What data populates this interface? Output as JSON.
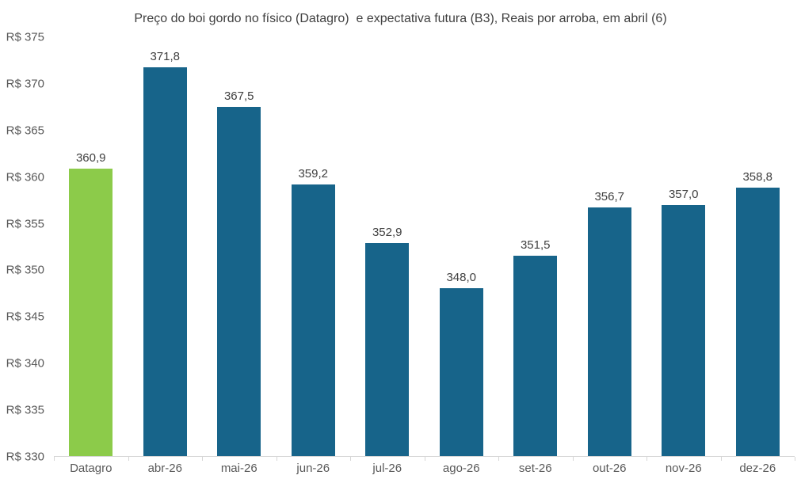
{
  "chart_data": {
    "type": "bar",
    "title": "Preço do boi gordo no físico (Datagro)  e expectativa futura (B3), Reais por arroba, em abril (6)",
    "categories": [
      "Datagro",
      "abr-26",
      "mai-26",
      "jun-26",
      "jul-26",
      "ago-26",
      "set-26",
      "out-26",
      "nov-26",
      "dez-26"
    ],
    "values": [
      360.9,
      371.8,
      367.5,
      359.2,
      352.9,
      348.0,
      351.5,
      356.7,
      357.0,
      358.8
    ],
    "value_labels": [
      "360,9",
      "371,8",
      "367,5",
      "359,2",
      "352,9",
      "348,0",
      "351,5",
      "356,7",
      "357,0",
      "358,8"
    ],
    "xlabel": "",
    "ylabel": "",
    "ylim": [
      330,
      375
    ],
    "ytick_step": 5,
    "ytick_values": [
      375,
      370,
      365,
      360,
      355,
      350,
      345,
      340,
      335,
      330
    ],
    "ytick_labels": [
      "R$ 375",
      "R$ 370",
      "R$ 365",
      "R$ 360",
      "R$ 355",
      "R$ 350",
      "R$ 345",
      "R$ 340",
      "R$ 335",
      "R$ 330"
    ],
    "grid": false,
    "legend": "none",
    "colors": {
      "highlight_bar": "#8ccb4a",
      "series_bar": "#17648a",
      "axis_line": "#d6d6d6",
      "title_text": "#404040",
      "axis_text": "#595959",
      "value_label_text": "#404040"
    },
    "highlight_index": 0
  }
}
